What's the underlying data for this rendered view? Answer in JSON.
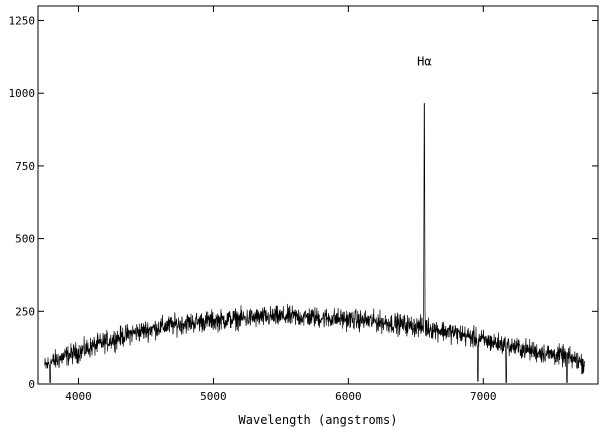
{
  "chart_data": {
    "type": "line",
    "title": "",
    "xlabel": "Wavelength (angstroms)",
    "ylabel": "",
    "xlim": [
      3700,
      7850
    ],
    "ylim": [
      0,
      1300
    ],
    "x_ticks": [
      4000,
      5000,
      6000,
      7000
    ],
    "y_ticks": [
      0,
      250,
      500,
      750,
      1000,
      1250
    ],
    "grid": false,
    "legend": "none",
    "line_color": "#000000",
    "annotations": [
      {
        "text": "Hα",
        "x": 6563,
        "y": 1095
      }
    ],
    "series": [
      {
        "continuum": {
          "x": [
            3750,
            3800,
            3900,
            4000,
            4200,
            4400,
            4600,
            4800,
            5000,
            5200,
            5400,
            5600,
            5800,
            6000,
            6200,
            6400,
            6600,
            6800,
            7000,
            7200,
            7400,
            7600,
            7700,
            7750
          ],
          "y": [
            60,
            75,
            95,
            110,
            145,
            175,
            195,
            210,
            218,
            225,
            230,
            232,
            228,
            222,
            215,
            205,
            192,
            175,
            150,
            130,
            110,
            95,
            80,
            70
          ]
        },
        "noise_amplitude": 25,
        "emission_lines": [
          {
            "label": "Hα",
            "x": 6563,
            "peak": 1020
          }
        ],
        "absorption_dips": [
          {
            "x": 3790,
            "min": 5
          },
          {
            "x": 6960,
            "min": 10
          },
          {
            "x": 7170,
            "min": 5
          },
          {
            "x": 7620,
            "min": 5
          }
        ]
      }
    ]
  }
}
